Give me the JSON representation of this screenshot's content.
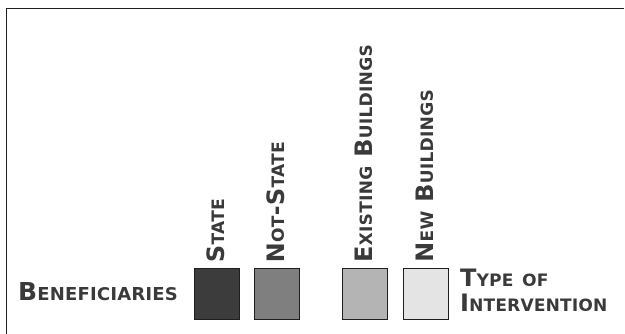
{
  "legend": {
    "beneficiaries_label": "Beneficiaries",
    "intervention_label_line1": "Type of",
    "intervention_label_line2": "Intervention",
    "items": [
      {
        "label": "State",
        "color": "#3c3c3c"
      },
      {
        "label": "Not-State",
        "color": "#7f7f7f"
      },
      {
        "label": "Existing Buildings",
        "color": "#b4b4b4"
      },
      {
        "label": "New Buildings",
        "color": "#e4e4e4"
      }
    ]
  }
}
